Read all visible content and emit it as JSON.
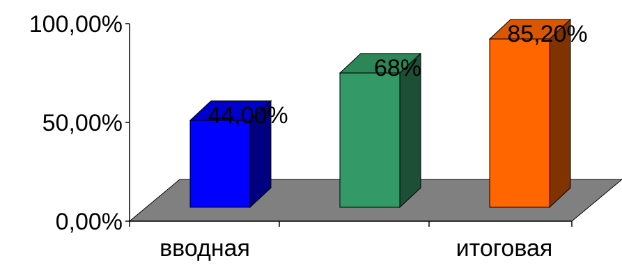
{
  "chart_data": {
    "type": "bar",
    "style": "3d-column",
    "categories": [
      "вводная",
      "",
      "итоговая"
    ],
    "values": [
      44.0,
      68.0,
      85.2
    ],
    "data_labels": [
      "44,00%",
      "68%",
      "85,20%"
    ],
    "ylim": [
      0,
      100
    ],
    "y_ticks": [
      0,
      50,
      100
    ],
    "y_tick_labels": [
      "0,00%",
      "50,00%",
      "100,00%"
    ],
    "grid": false,
    "legend": "none",
    "title": "",
    "xlabel": "",
    "ylabel": "",
    "colors": {
      "bars": [
        {
          "front": "#0000ff",
          "top": "#0000cc",
          "side": "#000080"
        },
        {
          "front": "#339966",
          "top": "#2c8657",
          "side": "#1d4f36"
        },
        {
          "front": "#ff6600",
          "top": "#d95700",
          "side": "#803300"
        }
      ],
      "floor": "#808080",
      "axis": "#000000"
    }
  }
}
